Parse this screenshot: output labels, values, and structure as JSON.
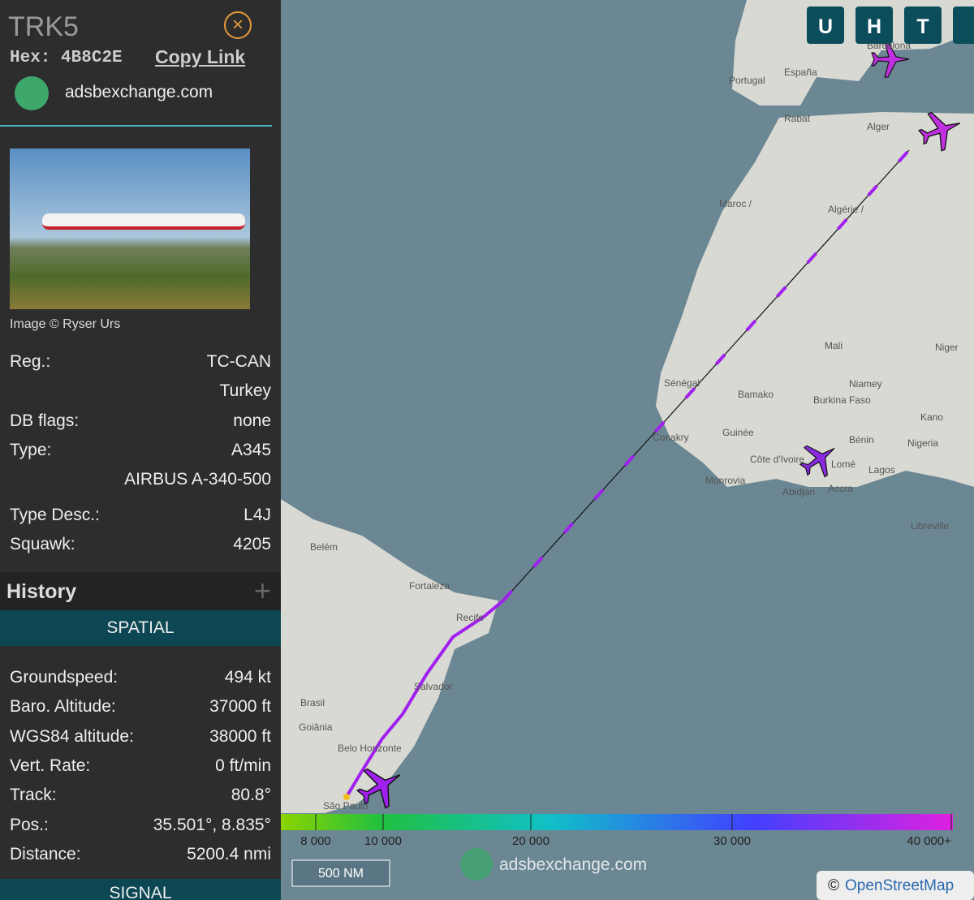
{
  "sidebar": {
    "callsign": "TRK5",
    "hex_label": "Hex:",
    "hex": "4B8C2E",
    "copy_link": "Copy Link",
    "site": "adsbexchange.com",
    "image_credit": "Image © Ryser Urs",
    "details": [
      {
        "label": "Reg.:",
        "value": "TC-CAN"
      },
      {
        "value": "Turkey"
      },
      {
        "label": "DB flags:",
        "value": "none"
      },
      {
        "label": "Type:",
        "value": "A345"
      },
      {
        "value": "AIRBUS A-340-500"
      },
      {
        "label": "Type Desc.:",
        "value": "L4J"
      },
      {
        "label": "Squawk:",
        "value": "4205"
      }
    ],
    "history": "History",
    "spatial": "SPATIAL",
    "spatial_rows": [
      {
        "label": "Groundspeed:",
        "value": "494 kt"
      },
      {
        "label": "Baro. Altitude:",
        "value": "37000 ft"
      },
      {
        "label": "WGS84 altitude:",
        "value": "38000 ft"
      },
      {
        "label": "Vert. Rate:",
        "value": "0 ft/min"
      },
      {
        "label": "Track:",
        "value": "80.8°"
      },
      {
        "label": "Pos.:",
        "value": "35.501°, 8.835°"
      },
      {
        "label": "Distance:",
        "value": "5200.4 nmi"
      }
    ],
    "signal": "SIGNAL"
  },
  "map": {
    "buttons": [
      "U",
      "H",
      "T"
    ],
    "labels": [
      "Portugal",
      "España",
      "Barcelona",
      "Rabat",
      "Alger",
      "Maroc /",
      "Algérie /",
      "Mali",
      "Niger",
      "Niamey",
      "Bamako",
      "Burkina Faso",
      "Sénégal",
      "Conakry",
      "Guinée",
      "Côte d'Ivoire",
      "Monrovia",
      "Abidjan",
      "Accra",
      "Lomé",
      "Lagos",
      "Bénin",
      "Nigeria",
      "Kano",
      "Libreville",
      "Belém",
      "Fortaleza",
      "Recife",
      "Salvador",
      "Brasil",
      "Goiânia",
      "Belo Horizonte",
      "São Paulo"
    ],
    "legend_ticks": [
      "8 000",
      "10 000",
      "20 000",
      "30 000",
      "40 000+"
    ],
    "scale": "500 NM",
    "watermark": "adsbexchange.com",
    "attribution_prefix": "©",
    "attribution_link": "OpenStreetMap"
  }
}
